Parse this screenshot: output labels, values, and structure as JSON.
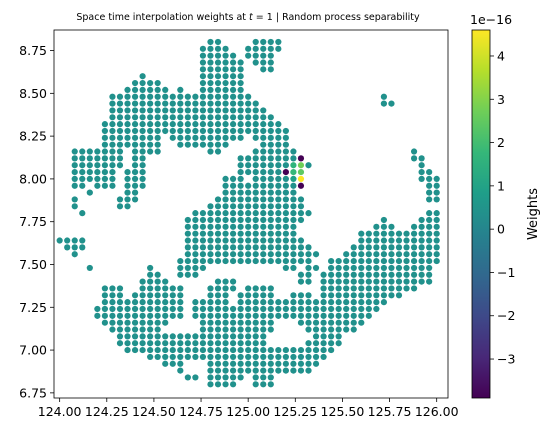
{
  "chart_data": {
    "type": "scatter",
    "title": "Space time interpolation weights at t = 1 | Random process separability",
    "title_parts": {
      "before": "Space time interpolation weights at ",
      "variable": "t",
      "after": " = 1 | Random process separability"
    },
    "xlabel": "",
    "ylabel": "",
    "xlim": [
      123.97,
      126.06
    ],
    "ylim": [
      6.72,
      8.87
    ],
    "x_ticks": [
      124.0,
      124.25,
      124.5,
      124.75,
      125.0,
      125.25,
      125.5,
      125.75,
      126.0
    ],
    "x_tick_labels": [
      "124.00",
      "124.25",
      "124.50",
      "124.75",
      "125.00",
      "125.25",
      "125.50",
      "125.75",
      "126.00"
    ],
    "y_ticks": [
      6.75,
      7.0,
      7.25,
      7.5,
      7.75,
      8.0,
      8.25,
      8.5,
      8.75
    ],
    "y_tick_labels": [
      "6.75",
      "7.00",
      "7.25",
      "7.50",
      "7.75",
      "8.00",
      "8.25",
      "8.50",
      "8.75"
    ],
    "grid": false,
    "grid_spacing": 0.04,
    "base_weight": 0,
    "base_color": "#21918c",
    "rows": [
      {
        "y": 8.8,
        "spans": [
          [
            124.8,
            124.84
          ],
          [
            125.04,
            125.16
          ]
        ]
      },
      {
        "y": 8.76,
        "spans": [
          [
            124.76,
            124.88
          ],
          [
            125.0,
            125.16
          ]
        ]
      },
      {
        "y": 8.72,
        "spans": [
          [
            124.76,
            124.92
          ],
          [
            125.0,
            125.12
          ]
        ]
      },
      {
        "y": 8.68,
        "spans": [
          [
            124.76,
            124.96
          ],
          [
            125.04,
            125.12
          ]
        ]
      },
      {
        "y": 8.64,
        "spans": [
          [
            124.76,
            124.96
          ],
          [
            125.08,
            125.12
          ]
        ]
      },
      {
        "y": 8.6,
        "spans": [
          [
            124.44,
            124.44
          ],
          [
            124.76,
            124.96
          ]
        ]
      },
      {
        "y": 8.56,
        "spans": [
          [
            124.4,
            124.52
          ],
          [
            124.76,
            124.96
          ]
        ]
      },
      {
        "y": 8.52,
        "spans": [
          [
            124.36,
            124.56
          ],
          [
            124.64,
            124.64
          ],
          [
            124.76,
            124.96
          ]
        ]
      },
      {
        "y": 8.48,
        "spans": [
          [
            124.28,
            124.96
          ],
          [
            125.0,
            125.0
          ],
          [
            125.72,
            125.72
          ]
        ]
      },
      {
        "y": 8.44,
        "spans": [
          [
            124.28,
            125.04
          ],
          [
            125.72,
            125.76
          ]
        ]
      },
      {
        "y": 8.4,
        "spans": [
          [
            124.28,
            125.08
          ]
        ]
      },
      {
        "y": 8.36,
        "spans": [
          [
            124.28,
            125.12
          ]
        ]
      },
      {
        "y": 8.32,
        "spans": [
          [
            124.24,
            125.16
          ]
        ]
      },
      {
        "y": 8.28,
        "spans": [
          [
            124.24,
            125.2
          ]
        ]
      },
      {
        "y": 8.24,
        "spans": [
          [
            124.24,
            124.52
          ],
          [
            124.6,
            124.96
          ],
          [
            125.04,
            125.2
          ]
        ]
      },
      {
        "y": 8.2,
        "spans": [
          [
            124.24,
            124.52
          ],
          [
            124.64,
            124.88
          ],
          [
            125.08,
            125.2
          ]
        ]
      },
      {
        "y": 8.16,
        "spans": [
          [
            124.08,
            124.32
          ],
          [
            124.4,
            124.52
          ],
          [
            124.8,
            124.84
          ],
          [
            125.04,
            125.24
          ],
          [
            125.88,
            125.88
          ]
        ]
      },
      {
        "y": 8.12,
        "spans": [
          [
            124.08,
            124.32
          ],
          [
            124.4,
            124.44
          ],
          [
            124.96,
            125.24
          ],
          [
            125.88,
            125.92
          ]
        ]
      },
      {
        "y": 8.08,
        "spans": [
          [
            124.08,
            124.32
          ],
          [
            124.4,
            124.44
          ],
          [
            124.96,
            125.2
          ],
          [
            125.24,
            125.32
          ],
          [
            125.92,
            125.92
          ]
        ]
      },
      {
        "y": 8.04,
        "spans": [
          [
            124.08,
            124.28
          ],
          [
            124.36,
            124.44
          ],
          [
            124.96,
            125.28
          ],
          [
            125.92,
            125.96
          ]
        ]
      },
      {
        "y": 8.0,
        "spans": [
          [
            124.08,
            124.16
          ],
          [
            124.2,
            124.28
          ],
          [
            124.36,
            124.44
          ],
          [
            124.88,
            124.96
          ],
          [
            125.04,
            125.28
          ],
          [
            125.92,
            126.0
          ]
        ]
      },
      {
        "y": 7.96,
        "spans": [
          [
            124.08,
            124.12
          ],
          [
            124.2,
            124.28
          ],
          [
            124.36,
            124.44
          ],
          [
            124.88,
            125.24
          ],
          [
            125.96,
            126.0
          ]
        ]
      },
      {
        "y": 7.92,
        "spans": [
          [
            124.16,
            124.16
          ],
          [
            124.36,
            124.4
          ],
          [
            124.88,
            125.24
          ],
          [
            125.96,
            126.0
          ]
        ]
      },
      {
        "y": 7.88,
        "spans": [
          [
            124.08,
            124.08
          ],
          [
            124.32,
            124.4
          ],
          [
            124.84,
            125.28
          ],
          [
            125.96,
            126.0
          ]
        ]
      },
      {
        "y": 7.84,
        "spans": [
          [
            124.08,
            124.08
          ],
          [
            124.32,
            124.36
          ],
          [
            124.8,
            125.28
          ]
        ]
      },
      {
        "y": 7.8,
        "spans": [
          [
            124.12,
            124.12
          ],
          [
            124.72,
            125.32
          ],
          [
            125.96,
            126.0
          ]
        ]
      },
      {
        "y": 7.76,
        "spans": [
          [
            124.68,
            125.28
          ],
          [
            125.72,
            125.72
          ],
          [
            125.92,
            126.0
          ]
        ]
      },
      {
        "y": 7.72,
        "spans": [
          [
            124.68,
            125.24
          ],
          [
            125.68,
            125.76
          ],
          [
            125.88,
            126.0
          ]
        ]
      },
      {
        "y": 7.68,
        "spans": [
          [
            124.68,
            125.24
          ],
          [
            125.6,
            126.0
          ]
        ]
      },
      {
        "y": 7.64,
        "spans": [
          [
            124.0,
            124.12
          ],
          [
            124.68,
            125.28
          ],
          [
            125.6,
            126.0
          ]
        ]
      },
      {
        "y": 7.6,
        "spans": [
          [
            124.04,
            124.12
          ],
          [
            124.68,
            125.32
          ],
          [
            125.56,
            126.0
          ]
        ]
      },
      {
        "y": 7.56,
        "spans": [
          [
            124.08,
            124.08
          ],
          [
            124.68,
            125.36
          ],
          [
            125.52,
            126.0
          ]
        ]
      },
      {
        "y": 7.52,
        "spans": [
          [
            124.64,
            125.24
          ],
          [
            125.28,
            125.32
          ],
          [
            125.44,
            126.0
          ]
        ]
      },
      {
        "y": 7.48,
        "spans": [
          [
            124.16,
            124.16
          ],
          [
            124.48,
            124.48
          ],
          [
            124.64,
            124.76
          ],
          [
            125.2,
            125.24
          ],
          [
            125.32,
            125.36
          ],
          [
            125.44,
            125.96
          ]
        ]
      },
      {
        "y": 7.44,
        "spans": [
          [
            124.48,
            124.52
          ],
          [
            124.64,
            124.72
          ],
          [
            125.28,
            125.32
          ],
          [
            125.4,
            125.96
          ]
        ]
      },
      {
        "y": 7.4,
        "spans": [
          [
            124.44,
            124.56
          ],
          [
            124.84,
            124.92
          ],
          [
            125.28,
            125.32
          ],
          [
            125.4,
            125.96
          ]
        ]
      },
      {
        "y": 7.36,
        "spans": [
          [
            124.24,
            124.32
          ],
          [
            124.44,
            124.64
          ],
          [
            124.8,
            124.92
          ],
          [
            125.0,
            125.12
          ],
          [
            125.4,
            125.8
          ],
          [
            125.84,
            125.88
          ]
        ]
      },
      {
        "y": 7.32,
        "spans": [
          [
            124.24,
            124.32
          ],
          [
            124.4,
            124.64
          ],
          [
            124.8,
            124.88
          ],
          [
            124.96,
            125.12
          ],
          [
            125.24,
            125.32
          ],
          [
            125.4,
            125.8
          ]
        ]
      },
      {
        "y": 7.28,
        "spans": [
          [
            124.24,
            124.64
          ],
          [
            124.72,
            124.88
          ],
          [
            124.96,
            125.72
          ]
        ]
      },
      {
        "y": 7.24,
        "spans": [
          [
            124.2,
            124.64
          ],
          [
            124.72,
            125.68
          ]
        ]
      },
      {
        "y": 7.2,
        "spans": [
          [
            124.2,
            124.64
          ],
          [
            124.72,
            125.64
          ]
        ]
      },
      {
        "y": 7.16,
        "spans": [
          [
            124.24,
            124.56
          ],
          [
            124.76,
            125.12
          ],
          [
            125.28,
            125.6
          ]
        ]
      },
      {
        "y": 7.12,
        "spans": [
          [
            124.28,
            124.52
          ],
          [
            124.76,
            125.12
          ],
          [
            125.32,
            125.52
          ],
          [
            125.56,
            125.56
          ]
        ]
      },
      {
        "y": 7.08,
        "spans": [
          [
            124.32,
            125.08
          ],
          [
            125.36,
            125.48
          ]
        ]
      },
      {
        "y": 7.04,
        "spans": [
          [
            124.32,
            125.08
          ],
          [
            125.32,
            125.48
          ]
        ]
      },
      {
        "y": 7.0,
        "spans": [
          [
            124.36,
            125.2
          ],
          [
            125.24,
            125.44
          ]
        ]
      },
      {
        "y": 6.96,
        "spans": [
          [
            124.48,
            125.2
          ],
          [
            125.24,
            125.4
          ]
        ]
      },
      {
        "y": 6.92,
        "spans": [
          [
            124.56,
            124.64
          ],
          [
            124.8,
            125.2
          ],
          [
            125.24,
            125.36
          ]
        ]
      },
      {
        "y": 6.88,
        "spans": [
          [
            124.64,
            124.64
          ],
          [
            124.8,
            125.16
          ],
          [
            125.2,
            125.32
          ]
        ]
      },
      {
        "y": 6.84,
        "spans": [
          [
            124.68,
            124.72
          ],
          [
            124.8,
            124.96
          ],
          [
            125.04,
            125.12
          ]
        ]
      },
      {
        "y": 6.8,
        "spans": [
          [
            124.8,
            124.92
          ],
          [
            125.04,
            125.12
          ]
        ]
      }
    ],
    "highlighted_points": [
      {
        "x": 125.28,
        "y": 8.12,
        "weight": -4e-16,
        "color": "#440154"
      },
      {
        "x": 125.24,
        "y": 8.08,
        "weight": 1.5e-16,
        "color": "#2fb47c"
      },
      {
        "x": 125.28,
        "y": 8.08,
        "weight": 2.5e-16,
        "color": "#6ece58"
      },
      {
        "x": 125.2,
        "y": 8.04,
        "weight": -3.9e-16,
        "color": "#440154"
      },
      {
        "x": 125.24,
        "y": 8.04,
        "weight": 1.5e-16,
        "color": "#35b779"
      },
      {
        "x": 125.28,
        "y": 8.04,
        "weight": 2.2e-16,
        "color": "#5ec962"
      },
      {
        "x": 125.24,
        "y": 8.0,
        "weight": 4e-17,
        "color": "#1fa187"
      },
      {
        "x": 125.28,
        "y": 8.0,
        "weight": 4.6e-16,
        "color": "#fde725"
      },
      {
        "x": 125.28,
        "y": 7.96,
        "weight": -3.6e-16,
        "color": "#440154"
      }
    ],
    "colorbar": {
      "label": "Weights",
      "colormap": "viridis",
      "range": [
        -3.9,
        4.6
      ],
      "ticks": [
        -3,
        -2,
        -1,
        0,
        1,
        2,
        3,
        4
      ],
      "tick_labels": [
        "−3",
        "−2",
        "−1",
        "0",
        "1",
        "2",
        "3",
        "4"
      ],
      "offset_text": "1e−16",
      "stops": [
        "#440154",
        "#482878",
        "#3e4989",
        "#31688e",
        "#26828e",
        "#1f9e89",
        "#35b779",
        "#6ece58",
        "#b5de2b",
        "#fde725"
      ]
    }
  }
}
